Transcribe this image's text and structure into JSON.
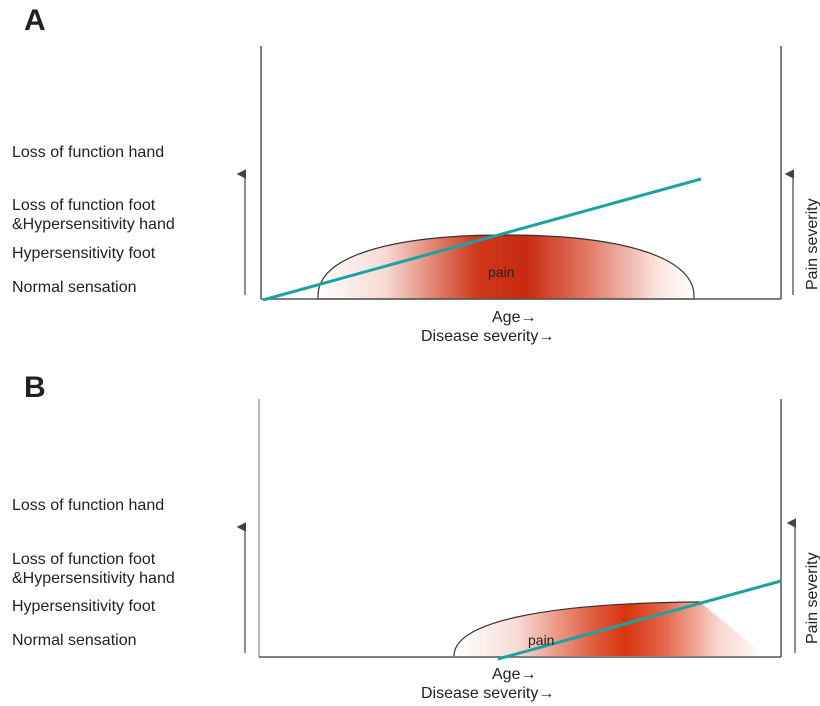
{
  "panels": [
    {
      "letter": "A",
      "y_levels": [
        "Loss of function hand",
        "Loss of function foot",
        "&Hypersensitivity hand",
        "Hypersensitivity foot",
        "Normal sensation"
      ],
      "pain_label": "pain",
      "x_label_1": "Age→",
      "x_label_2": "Disease severity→",
      "right_label": "Pain severity"
    },
    {
      "letter": "B",
      "y_levels": [
        "Loss of function hand",
        "Loss of function foot",
        "&Hypersensitivity hand",
        "Hypersensitivity foot",
        "Normal sensation"
      ],
      "pain_label": "pain",
      "x_label_1": "Age→",
      "x_label_2": "Disease severity→",
      "right_label": "Pain severity"
    }
  ],
  "colors": {
    "line": "#1aa3a3",
    "pain": "#cc2a10",
    "axis": "#444444"
  }
}
